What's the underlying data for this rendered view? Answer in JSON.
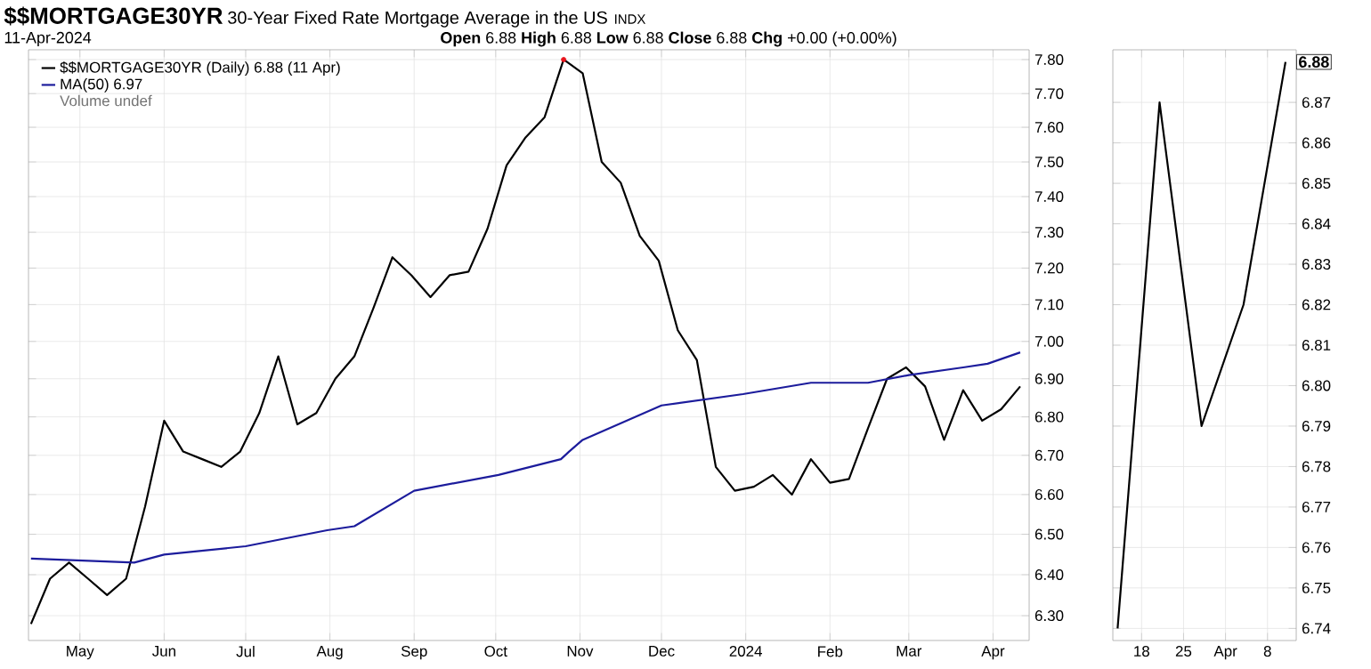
{
  "chart_data": [
    {
      "type": "line",
      "title": "$$MORTGAGE30YR",
      "subtitle": "30-Year Fixed Rate Mortgage Average in the US",
      "annotations": [
        "INDX",
        "11-Apr-2024",
        "**Open** 6.88  **High** 6.88  **Low** 6.88  **Close** 6.88  **Chg** +0.00 (+0.00%)",
        "Volume undef"
      ],
      "x": [
        "2023-04-13",
        "2023-04-20",
        "2023-04-27",
        "2023-05-04",
        "2023-05-11",
        "2023-05-18",
        "2023-05-25",
        "2023-06-01",
        "2023-06-08",
        "2023-06-15",
        "2023-06-22",
        "2023-06-29",
        "2023-07-06",
        "2023-07-13",
        "2023-07-20",
        "2023-07-27",
        "2023-08-03",
        "2023-08-10",
        "2023-08-17",
        "2023-08-24",
        "2023-08-31",
        "2023-09-07",
        "2023-09-14",
        "2023-09-21",
        "2023-09-28",
        "2023-10-05",
        "2023-10-12",
        "2023-10-19",
        "2023-10-26",
        "2023-11-02",
        "2023-11-09",
        "2023-11-16",
        "2023-11-23",
        "2023-11-30",
        "2023-12-07",
        "2023-12-14",
        "2023-12-21",
        "2023-12-28",
        "2024-01-04",
        "2024-01-11",
        "2024-01-18",
        "2024-01-25",
        "2024-02-01",
        "2024-02-08",
        "2024-02-15",
        "2024-02-22",
        "2024-02-29",
        "2024-03-07",
        "2024-03-14",
        "2024-03-21",
        "2024-03-28",
        "2024-04-04",
        "2024-04-11"
      ],
      "series": [
        {
          "name": "$$MORTGAGE30YR (Daily) 6.88 (11 Apr)",
          "color": "#000000",
          "values": [
            6.28,
            6.39,
            6.43,
            6.39,
            6.35,
            6.39,
            6.57,
            6.79,
            6.71,
            6.69,
            6.67,
            6.71,
            6.81,
            6.96,
            6.78,
            6.81,
            6.9,
            6.96,
            7.09,
            7.23,
            7.18,
            7.12,
            7.18,
            7.19,
            7.31,
            7.49,
            7.57,
            7.63,
            7.8,
            7.76,
            7.5,
            7.44,
            7.29,
            7.22,
            7.03,
            6.95,
            6.67,
            6.61,
            6.62,
            6.65,
            6.6,
            6.69,
            6.63,
            6.64,
            6.77,
            6.9,
            6.93,
            6.88,
            6.74,
            6.87,
            6.79,
            6.82,
            6.88
          ]
        },
        {
          "name": "MA(50) 6.97",
          "color": "#1c1c9c",
          "x": [
            "2023-04-13",
            "2023-05-21",
            "2023-06-01",
            "2023-07-01",
            "2023-07-31",
            "2023-08-10",
            "2023-09-01",
            "2023-10-02",
            "2023-10-25",
            "2023-10-28",
            "2023-11-02",
            "2023-12-01",
            "2023-12-31",
            "2024-01-25",
            "2024-02-15",
            "2024-03-01",
            "2024-03-21",
            "2024-03-30",
            "2024-04-11"
          ],
          "values": [
            6.44,
            6.43,
            6.45,
            6.47,
            6.51,
            6.52,
            6.61,
            6.65,
            6.69,
            6.71,
            6.74,
            6.83,
            6.86,
            6.89,
            6.89,
            6.91,
            6.93,
            6.94,
            6.97
          ]
        },
        {
          "type": "scatter",
          "marker": "circle",
          "color": "#e8141c",
          "x": [
            "2023-10-26"
          ],
          "values": [
            7.8
          ]
        }
      ],
      "log": true,
      "grid": true,
      "legend": "top left",
      "xlim": [
        "2023-04-12T02:00",
        "2024-04-14T07:00"
      ],
      "xticks": [
        {
          "value": "2023-05-01",
          "label": "May"
        },
        {
          "value": "2023-06-01",
          "label": "Jun"
        },
        {
          "value": "2023-07-01",
          "label": "Jul"
        },
        {
          "value": "2023-08-01",
          "label": "Aug"
        },
        {
          "value": "2023-09-01",
          "label": "Sep"
        },
        {
          "value": "2023-10-01",
          "label": "Oct"
        },
        {
          "value": "2023-11-01",
          "label": "Nov"
        },
        {
          "value": "2023-12-01",
          "label": "Dec"
        },
        {
          "value": "2024-01-01",
          "label": "2024"
        },
        {
          "value": "2024-02-01",
          "label": "Feb"
        },
        {
          "value": "2024-03-01",
          "label": "Mar"
        },
        {
          "value": "2024-04-01",
          "label": "Apr"
        }
      ],
      "ylim": [
        6.24,
        7.83
      ],
      "yticks": [
        {
          "value": 6.3,
          "label": "6.30"
        },
        {
          "value": 6.4,
          "label": "6.40"
        },
        {
          "value": 6.5,
          "label": "6.50"
        },
        {
          "value": 6.6,
          "label": "6.60"
        },
        {
          "value": 6.7,
          "label": "6.70"
        },
        {
          "value": 6.8,
          "label": "6.80"
        },
        {
          "value": 6.9,
          "label": "6.90"
        },
        {
          "value": 7.0,
          "label": "7.00"
        },
        {
          "value": 7.1,
          "label": "7.10"
        },
        {
          "value": 7.2,
          "label": "7.20"
        },
        {
          "value": 7.3,
          "label": "7.30"
        },
        {
          "value": 7.4,
          "label": "7.40"
        },
        {
          "value": 7.5,
          "label": "7.50"
        },
        {
          "value": 7.6,
          "label": "7.60"
        },
        {
          "value": 7.7,
          "label": "7.70"
        },
        {
          "value": 7.8,
          "label": "7.80"
        }
      ]
    },
    {
      "type": "line",
      "x": [
        "2024-03-14",
        "2024-03-21",
        "2024-03-28",
        "2024-04-04",
        "2024-04-11"
      ],
      "series": [
        {
          "color": "#000000",
          "values": [
            6.74,
            6.87,
            6.79,
            6.82,
            6.88
          ]
        }
      ],
      "grid": true,
      "annotations": [
        {
          "text": "6.88",
          "x": "2024-04-11",
          "y": 6.88
        }
      ],
      "xlim": [
        "2024-03-13T05:00",
        "2024-04-12T19:00"
      ],
      "xticks": [
        {
          "value": "2024-03-18",
          "label": "18"
        },
        {
          "value": "2024-03-25",
          "label": "25"
        },
        {
          "value": "2024-04-01",
          "label": "Apr"
        },
        {
          "value": "2024-04-08",
          "label": "8"
        }
      ],
      "ylim": [
        6.737,
        6.883
      ],
      "yticks": [
        6.74,
        6.75,
        6.76,
        6.77,
        6.78,
        6.79,
        {
          "value": 6.8,
          "label": "6.80"
        },
        6.81,
        6.82,
        6.83,
        6.84,
        6.85,
        6.86,
        6.87
      ]
    }
  ]
}
